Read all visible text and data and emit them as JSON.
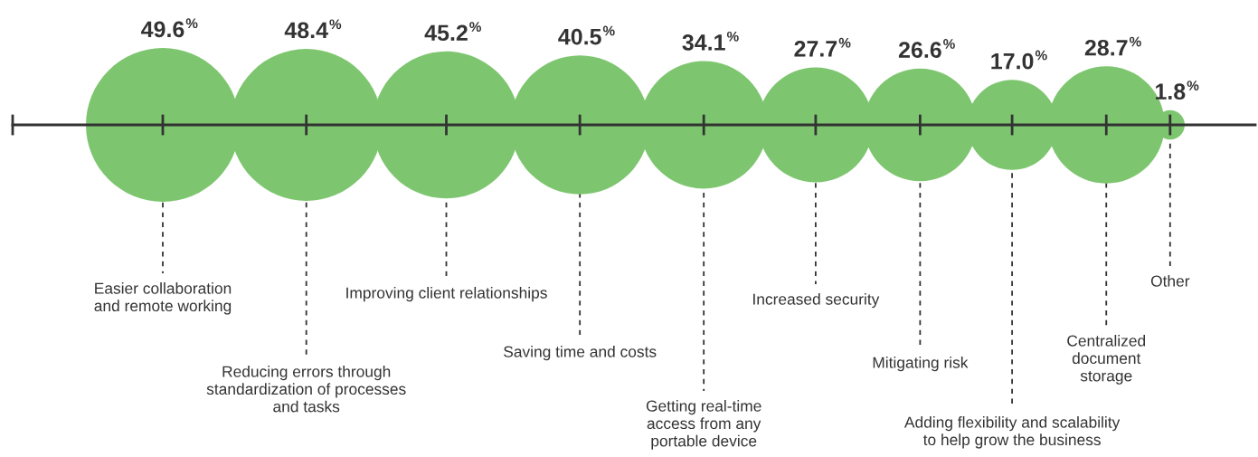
{
  "chart_data": {
    "type": "other",
    "categories": [
      "Easier collaboration\nand remote working",
      "Reducing errors through\nstandardization of processes\nand tasks",
      "Improving client relationships",
      "Saving time and costs",
      "Getting real-time\naccess from any\nportable device",
      "Increased security",
      "Mitigating risk",
      "Adding flexibility and scalability\nto help grow the business",
      "Centralized\ndocument\nstorage",
      "Other"
    ],
    "values": [
      49.6,
      48.4,
      45.2,
      40.5,
      34.1,
      27.7,
      26.6,
      17.0,
      28.7,
      1.8
    ],
    "value_labels": [
      "49.6%",
      "48.4%",
      "45.2%",
      "40.5%",
      "34.1%",
      "27.7%",
      "26.6%",
      "17.0%",
      "28.7%",
      "1.8%"
    ],
    "color": "#7dc66f"
  }
}
